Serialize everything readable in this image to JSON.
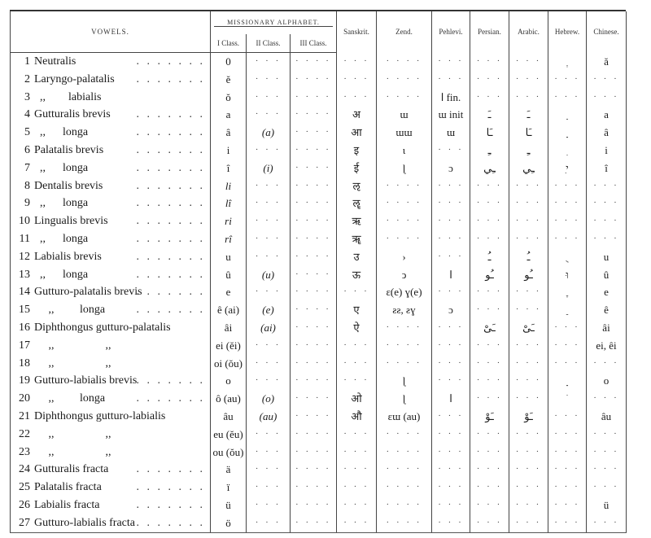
{
  "header": {
    "vowels": "VOWELS.",
    "missionary_alphabet": "MISSIONARY ALPHABET.",
    "class1": "I Class.",
    "class2": "II Class.",
    "class3": "III Class.",
    "sanskrit": "Sanskrit.",
    "zend": "Zend.",
    "pehlevi": "Pehlevi.",
    "persian": "Persian.",
    "arabic": "Arabic.",
    "hebrew": "Hebrew.",
    "chinese": "Chinese."
  },
  "rows": [
    {
      "num": "1",
      "name": "Neutralis",
      "leader": true,
      "cells": [
        "0",
        "· · ·",
        "· · · ·",
        "· · ·",
        "· · · ·",
        "· · ·",
        "· · ·",
        "· · ·",
        "ְ",
        "ă"
      ]
    },
    {
      "num": "2",
      "name": "Laryngo-palatalis",
      "leader": true,
      "cells": [
        "ĕ",
        "· · ·",
        "· · · ·",
        "· · ·",
        "· · · ·",
        "· · ·",
        "· · ·",
        "· · ·",
        "· · ·",
        "· · ·"
      ]
    },
    {
      "num": "3",
      "name": "  ,,        labialis",
      "leader": false,
      "cells": [
        "ŏ",
        "· · ·",
        "· · · ·",
        "· · ·",
        "· · · ·",
        "ا fin.",
        "· · ·",
        "· · ·",
        "· · ·",
        "· · ·"
      ]
    },
    {
      "num": "4",
      "name": "Gutturalis brevis",
      "leader": true,
      "cells": [
        "a",
        "· · ·",
        "· · · ·",
        "अ",
        "ɯ",
        "ɯ init",
        "ـَ",
        "ـَ",
        "ַ",
        "a"
      ]
    },
    {
      "num": "5",
      "name": "  ,,      longa",
      "leader": true,
      "cells": [
        "â",
        "(a)",
        "· · · ·",
        "आ",
        "ɯɯ",
        "ɯ",
        "ـَا",
        "ـَا",
        "ָ",
        "â"
      ]
    },
    {
      "num": "6",
      "name": "Palatalis brevis",
      "leader": true,
      "cells": [
        "i",
        "· · ·",
        "· · · ·",
        "इ",
        "ɩ",
        "· · ·",
        "ـِ",
        "ـِ",
        "ִ",
        "i"
      ]
    },
    {
      "num": "7",
      "name": "  ,,      longa",
      "leader": true,
      "cells": [
        "î",
        "(i)",
        "· · · ·",
        "ई",
        "ɭ",
        "ɔ",
        "ـِي",
        "ـِي",
        "ִי",
        "î"
      ]
    },
    {
      "num": "8",
      "name": "Dentalis brevis",
      "leader": true,
      "cells": [
        "li",
        "· · ·",
        "· · · ·",
        "ऌ",
        "· · · ·",
        "· · ·",
        "· · ·",
        "· · ·",
        "· · ·",
        "· · ·"
      ]
    },
    {
      "num": "9",
      "name": "  ,,      longa",
      "leader": true,
      "cells": [
        "lî",
        "· · ·",
        "· · · ·",
        "ॡ",
        "· · · ·",
        "· · ·",
        "· · ·",
        "· · ·",
        "· · ·",
        "· · ·"
      ]
    },
    {
      "num": "10",
      "name": "Lingualis brevis",
      "leader": true,
      "cells": [
        "ri",
        "· · ·",
        "· · · ·",
        "ऋ",
        "· · · ·",
        "· · ·",
        "· · ·",
        "· · ·",
        "· · ·",
        "· · ·"
      ]
    },
    {
      "num": "11",
      "name": "  ,,      longa",
      "leader": true,
      "cells": [
        "rî",
        "· · ·",
        "· · · ·",
        "ॠ",
        "· · · ·",
        "· · ·",
        "· · ·",
        "· · ·",
        "· · ·",
        "· · ·"
      ]
    },
    {
      "num": "12",
      "name": "Labialis brevis",
      "leader": true,
      "cells": [
        "u",
        "· · ·",
        "· · · ·",
        "उ",
        "›",
        "· · ·",
        "ـُ",
        "ـُ",
        "ֻ",
        "u"
      ]
    },
    {
      "num": "13",
      "name": "  ,,      longa",
      "leader": true,
      "cells": [
        "û",
        "(u)",
        "· · · ·",
        "ऊ",
        "ↄ",
        "ا",
        "ـُو",
        "ـُو",
        "וּ",
        "û"
      ]
    },
    {
      "num": "14",
      "name": "Gutturo-palatalis brevis",
      "leader": true,
      "cells": [
        "e",
        "· · ·",
        "· · · ·",
        "· · ·",
        "ɛ(e) ɣ(e)",
        "· · ·",
        "· · ·",
        "· · ·",
        "ֶ",
        "e"
      ]
    },
    {
      "num": "15",
      "name": "     ,,         longa",
      "leader": true,
      "cells": [
        "ê (ai)",
        "(e)",
        "· · · ·",
        "ए",
        "ƨƨ, ƨɣ",
        "ɔ",
        "· · ·",
        "· · ·",
        "ֵ",
        "ê"
      ]
    },
    {
      "num": "16",
      "name": "Diphthongus gutturo-palatalis",
      "leader": false,
      "cells": [
        "âi",
        "(ai)",
        "· · · ·",
        "ऐ",
        "· · · ·",
        "· · ·",
        "ـَىْ",
        "ـَىْ",
        "· · ·",
        "âi"
      ]
    },
    {
      "num": "17",
      "name": "     ,,                  ,,",
      "leader": false,
      "cells": [
        "ei (ĕi)",
        "· · ·",
        "· · · ·",
        "· · ·",
        "· · · ·",
        "· · ·",
        "· · ·",
        "· · ·",
        "· · ·",
        "ei, êi"
      ]
    },
    {
      "num": "18",
      "name": "     ,,                  ,,",
      "leader": false,
      "cells": [
        "oi (ŏu)",
        "· · ·",
        "· · · ·",
        "· · ·",
        "· · · ·",
        "· · ·",
        "· · ·",
        "· · ·",
        "· · ·",
        "· · ·"
      ]
    },
    {
      "num": "19",
      "name": "Gutturo-labialis brevis",
      "leader": true,
      "cells": [
        "o",
        "· · ·",
        "· · · ·",
        "· · ·",
        "ɭ",
        "· · ·",
        "· · ·",
        "· · ·",
        "ָ",
        "o"
      ]
    },
    {
      "num": "20",
      "name": "     ,,         longa",
      "leader": true,
      "cells": [
        "ô (au)",
        "(o)",
        "· · · ·",
        "ओ",
        "ɭ",
        "ا",
        "· · ·",
        "· · ·",
        "ֹ",
        "· · ·"
      ]
    },
    {
      "num": "21",
      "name": "Diphthongus gutturo-labialis",
      "leader": false,
      "cells": [
        "âu",
        "(au)",
        "· · · ·",
        "औ",
        "ɛɯ (au)",
        "· · ·",
        "ـَوْ",
        "ـَوْ",
        "· · ·",
        "âu"
      ]
    },
    {
      "num": "22",
      "name": "     ,,                  ,,",
      "leader": false,
      "cells": [
        "eu (ĕu)",
        "· · ·",
        "· · · ·",
        "· · ·",
        "· · · ·",
        "· · ·",
        "· · ·",
        "· · ·",
        "· · ·",
        "· · ·"
      ]
    },
    {
      "num": "23",
      "name": "     ,,                  ,,",
      "leader": false,
      "cells": [
        "ou (ŏu)",
        "· · ·",
        "· · · ·",
        "· · ·",
        "· · · ·",
        "· · ·",
        "· · ·",
        "· · ·",
        "· · ·",
        "· · ·"
      ]
    },
    {
      "num": "24",
      "name": "Gutturalis fracta",
      "leader": true,
      "cells": [
        "ä",
        "· · ·",
        "· · · ·",
        "· · ·",
        "· · · ·",
        "· · ·",
        "· · ·",
        "· · ·",
        "· · ·",
        "· · ·"
      ]
    },
    {
      "num": "25",
      "name": "Palatalis fracta",
      "leader": true,
      "cells": [
        "ï",
        "· · ·",
        "· · · ·",
        "· · ·",
        "· · · ·",
        "· · ·",
        "· · ·",
        "· · ·",
        "· · ·",
        "· · ·"
      ]
    },
    {
      "num": "26",
      "name": "Labialis fracta",
      "leader": true,
      "cells": [
        "ü",
        "· · ·",
        "· · · ·",
        "· · ·",
        "· · · ·",
        "· · ·",
        "· · ·",
        "· · ·",
        "· · ·",
        "ü"
      ]
    },
    {
      "num": "27",
      "name": "Gutturo-labialis fracta",
      "leader": true,
      "cells": [
        "ö",
        "· · ·",
        "· · · ·",
        "· · ·",
        "· · · ·",
        "· · ·",
        "· · ·",
        "· · ·",
        "· · ·",
        "· · ·"
      ]
    }
  ]
}
